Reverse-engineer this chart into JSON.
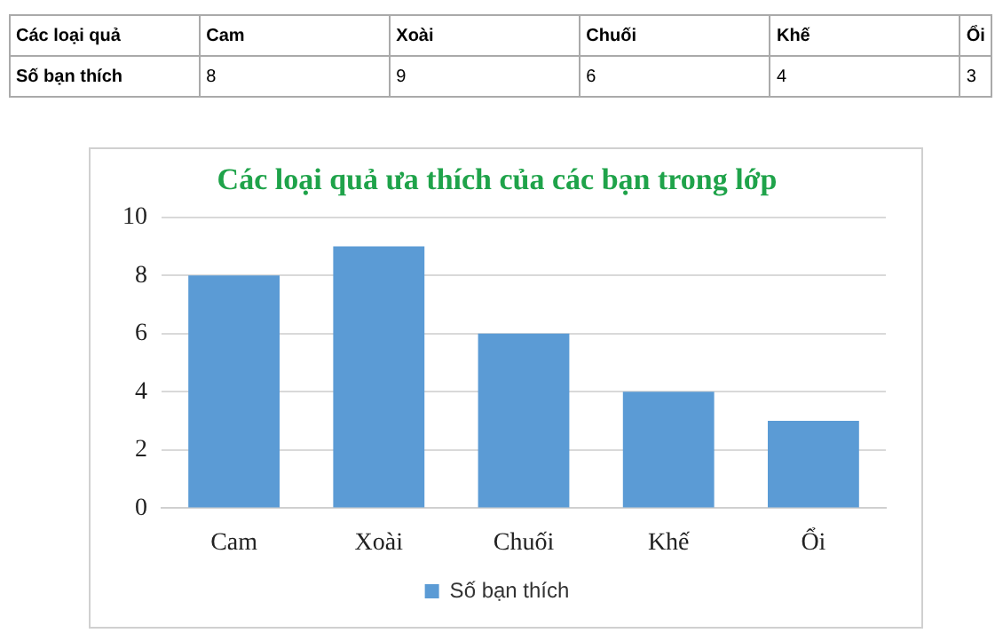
{
  "chart_data": [
    {
      "type": "other",
      "annotations": [
        "Các loại quả"
      ],
      "categories": [
        "Cam",
        "Xoài",
        "Chuối",
        "Khế",
        "Ổi"
      ],
      "series": [
        {
          "name": "Số bạn thích",
          "values": [
            8,
            9,
            6,
            4,
            3
          ]
        }
      ],
      "data_labels": true
    },
    {
      "type": "bar",
      "title": "Các loại quả ưa thích của các bạn trong lớp",
      "categories": [
        "Cam",
        "Xoài",
        "Chuối",
        "Khế",
        "Ổi"
      ],
      "series": [
        {
          "name": "Số bạn thích",
          "color": "#5b9bd5",
          "values": [
            8,
            9,
            6,
            4,
            3
          ]
        }
      ],
      "ylim": [
        0,
        10
      ],
      "yticks": [
        0,
        2,
        4,
        6,
        8,
        10
      ],
      "grid": "y",
      "legend": "bottom"
    }
  ]
}
